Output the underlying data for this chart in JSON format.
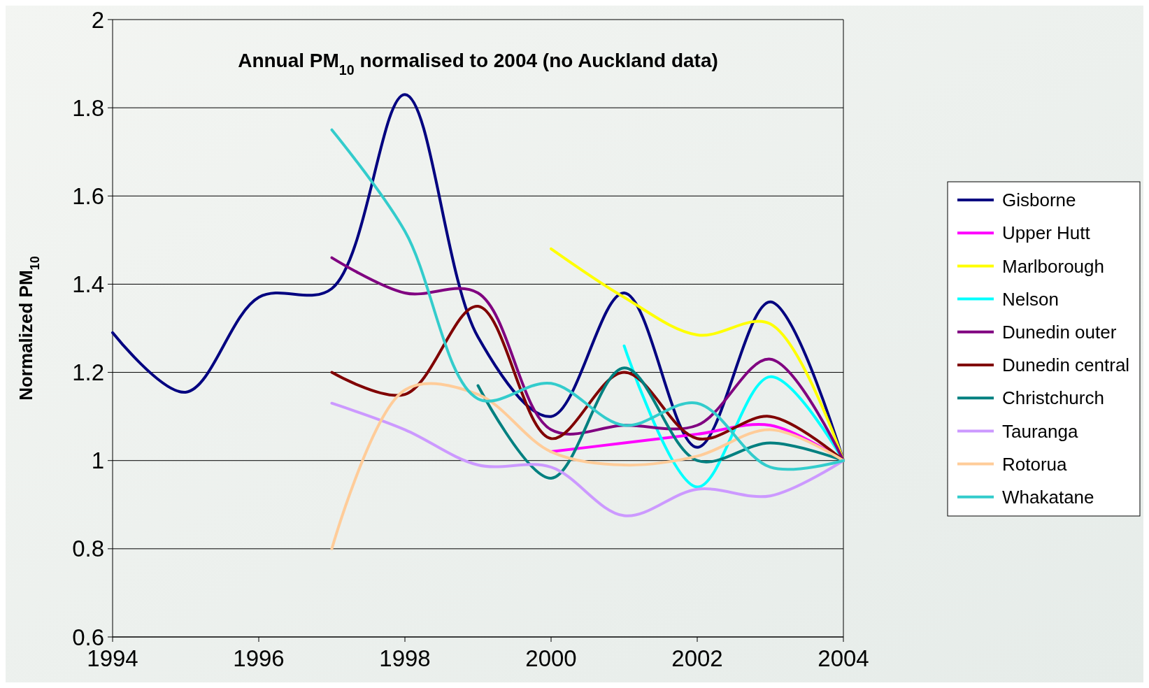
{
  "chart_data": {
    "type": "line",
    "title": "Annual PM$_{10}$ normalised to 2004 (no Auckland data)",
    "ylabel": "Normalized PM$_{10}$",
    "x": [
      1994,
      1995,
      1996,
      1997,
      1998,
      1999,
      2000,
      2001,
      2002,
      2003,
      2004
    ],
    "xlim": [
      1994,
      2004
    ],
    "xticks": [
      1994,
      1996,
      1998,
      2000,
      2002,
      2004
    ],
    "ylim": [
      0.6,
      2
    ],
    "yticks": [
      0.6,
      0.8,
      1,
      1.2,
      1.4,
      1.6,
      1.8,
      2
    ],
    "grid": "y",
    "legend": "right",
    "marker": "none",
    "line_style": "solid",
    "series": [
      {
        "name": "Gisborne",
        "color": "#000080",
        "values": [
          1.29,
          1.155,
          1.37,
          1.39,
          1.83,
          1.28,
          1.1,
          1.38,
          1.03,
          1.36,
          1.0
        ]
      },
      {
        "name": "Upper Hutt",
        "color": "#ff00ff",
        "values": [
          null,
          null,
          null,
          null,
          null,
          null,
          1.02,
          1.04,
          1.06,
          1.08,
          1.0
        ]
      },
      {
        "name": "Marlborough",
        "color": "#ffff00",
        "values": [
          null,
          null,
          null,
          null,
          null,
          null,
          1.48,
          1.37,
          1.285,
          1.31,
          1.0
        ]
      },
      {
        "name": "Nelson",
        "color": "#00ffff",
        "values": [
          null,
          null,
          null,
          null,
          null,
          null,
          null,
          1.26,
          0.94,
          1.19,
          1.0
        ]
      },
      {
        "name": "Dunedin outer",
        "color": "#800080",
        "values": [
          null,
          null,
          null,
          1.46,
          1.38,
          1.38,
          1.07,
          1.08,
          1.08,
          1.23,
          1.0
        ]
      },
      {
        "name": "Dunedin central",
        "color": "#800000",
        "values": [
          null,
          null,
          null,
          1.2,
          1.15,
          1.35,
          1.05,
          1.2,
          1.05,
          1.1,
          1.0
        ]
      },
      {
        "name": "Christchurch",
        "color": "#008080",
        "values": [
          null,
          null,
          null,
          null,
          null,
          1.17,
          0.96,
          1.21,
          1.0,
          1.04,
          1.0
        ]
      },
      {
        "name": "Tauranga",
        "color": "#cc99ff",
        "values": [
          null,
          null,
          null,
          1.13,
          1.07,
          0.99,
          0.985,
          0.875,
          0.935,
          0.92,
          1.0
        ]
      },
      {
        "name": "Rotorua",
        "color": "#ffcc99",
        "values": [
          null,
          null,
          null,
          0.8,
          1.16,
          1.15,
          1.02,
          0.99,
          1.01,
          1.07,
          1.0
        ]
      },
      {
        "name": "Whakatane",
        "color": "#33cccc",
        "values": [
          null,
          null,
          null,
          1.75,
          1.52,
          1.14,
          1.175,
          1.08,
          1.13,
          0.985,
          1.0
        ]
      }
    ]
  }
}
